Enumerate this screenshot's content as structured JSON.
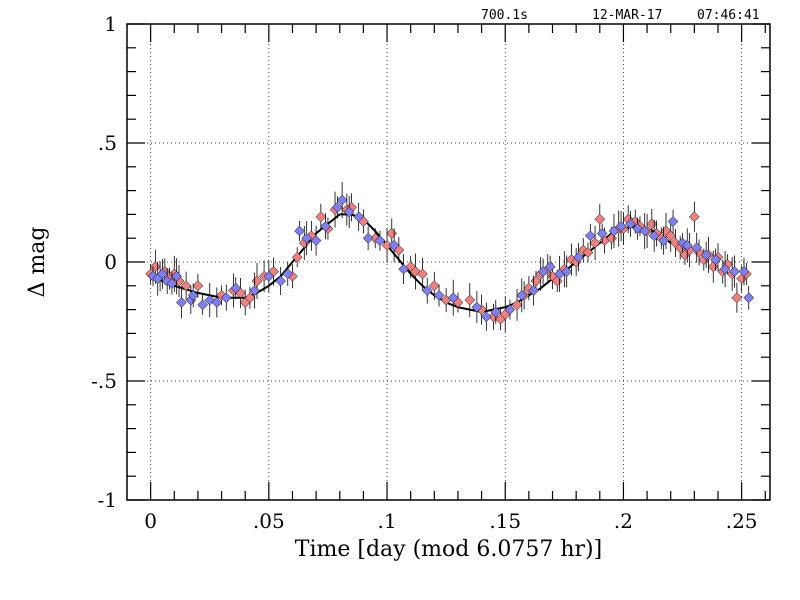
{
  "header": {
    "exposure": "700.1s",
    "date": "12-MAR-17",
    "time": "07:46:41"
  },
  "chart_data": {
    "type": "scatter",
    "title": "",
    "xlabel": "Time [day (mod 6.0757 hr)]",
    "ylabel": "Δ mag",
    "xlim": [
      -0.01,
      0.262
    ],
    "ylim": [
      -1,
      1
    ],
    "x_ticks": [
      0,
      0.05,
      0.1,
      0.15,
      0.2,
      0.25
    ],
    "x_tick_labels": [
      "0",
      ".05",
      ".1",
      ".15",
      ".2",
      ".25"
    ],
    "y_ticks": [
      1,
      0.5,
      0,
      -0.5,
      -1
    ],
    "y_tick_labels": [
      "1",
      ".5",
      "0",
      "-.5",
      "-1"
    ],
    "grid": "dotted",
    "colors": {
      "series_a": "#f08080",
      "series_b": "#7f7ff0",
      "curve": "#000000",
      "error_bar": "#000000"
    },
    "series": [
      {
        "color": "#f08080",
        "marker": "diamond",
        "points": [
          [
            0.0,
            -0.05
          ],
          [
            0.002,
            -0.02
          ],
          [
            0.004,
            -0.06
          ],
          [
            0.006,
            -0.04
          ],
          [
            0.008,
            -0.07
          ],
          [
            0.01,
            -0.05
          ],
          [
            0.012,
            -0.08
          ],
          [
            0.015,
            -0.1
          ],
          [
            0.02,
            -0.1
          ],
          [
            0.03,
            -0.14
          ],
          [
            0.035,
            -0.12
          ],
          [
            0.038,
            -0.13
          ],
          [
            0.04,
            -0.17
          ],
          [
            0.042,
            -0.15
          ],
          [
            0.045,
            -0.08
          ],
          [
            0.048,
            -0.06
          ],
          [
            0.052,
            -0.04
          ],
          [
            0.06,
            -0.06
          ],
          [
            0.062,
            0.02
          ],
          [
            0.065,
            0.08
          ],
          [
            0.068,
            0.11
          ],
          [
            0.072,
            0.19
          ],
          [
            0.075,
            0.14
          ],
          [
            0.078,
            0.22
          ],
          [
            0.083,
            0.22
          ],
          [
            0.085,
            0.23
          ],
          [
            0.09,
            0.17
          ],
          [
            0.095,
            0.1
          ],
          [
            0.1,
            0.07
          ],
          [
            0.102,
            0.12
          ],
          [
            0.105,
            0.05
          ],
          [
            0.11,
            -0.02
          ],
          [
            0.112,
            -0.04
          ],
          [
            0.115,
            -0.05
          ],
          [
            0.12,
            -0.1
          ],
          [
            0.125,
            -0.16
          ],
          [
            0.13,
            -0.17
          ],
          [
            0.135,
            -0.16
          ],
          [
            0.14,
            -0.2
          ],
          [
            0.145,
            -0.23
          ],
          [
            0.148,
            -0.24
          ],
          [
            0.15,
            -0.22
          ],
          [
            0.155,
            -0.18
          ],
          [
            0.158,
            -0.14
          ],
          [
            0.16,
            -0.11
          ],
          [
            0.163,
            -0.08
          ],
          [
            0.165,
            -0.05
          ],
          [
            0.168,
            -0.03
          ],
          [
            0.17,
            -0.06
          ],
          [
            0.172,
            -0.08
          ],
          [
            0.175,
            -0.03
          ],
          [
            0.178,
            0.01
          ],
          [
            0.18,
            0.0
          ],
          [
            0.183,
            0.05
          ],
          [
            0.185,
            0.04
          ],
          [
            0.188,
            0.08
          ],
          [
            0.19,
            0.18
          ],
          [
            0.192,
            0.09
          ],
          [
            0.195,
            0.1
          ],
          [
            0.198,
            0.14
          ],
          [
            0.2,
            0.14
          ],
          [
            0.202,
            0.18
          ],
          [
            0.205,
            0.17
          ],
          [
            0.207,
            0.15
          ],
          [
            0.21,
            0.13
          ],
          [
            0.212,
            0.16
          ],
          [
            0.214,
            0.12
          ],
          [
            0.216,
            0.1
          ],
          [
            0.218,
            0.13
          ],
          [
            0.22,
            0.11
          ],
          [
            0.222,
            0.08
          ],
          [
            0.224,
            0.06
          ],
          [
            0.226,
            0.03
          ],
          [
            0.228,
            0.05
          ],
          [
            0.23,
            0.19
          ],
          [
            0.232,
            0.04
          ],
          [
            0.234,
            0.01
          ],
          [
            0.236,
            0.03
          ],
          [
            0.238,
            -0.02
          ],
          [
            0.24,
            0.02
          ],
          [
            0.242,
            -0.04
          ],
          [
            0.244,
            -0.01
          ],
          [
            0.246,
            -0.05
          ],
          [
            0.248,
            -0.15
          ],
          [
            0.25,
            -0.07
          ],
          [
            0.252,
            -0.05
          ]
        ]
      },
      {
        "color": "#7f7ff0",
        "marker": "diamond",
        "points": [
          [
            0.001,
            -0.06
          ],
          [
            0.003,
            -0.07
          ],
          [
            0.005,
            -0.05
          ],
          [
            0.007,
            -0.08
          ],
          [
            0.009,
            -0.09
          ],
          [
            0.011,
            -0.06
          ],
          [
            0.013,
            -0.17
          ],
          [
            0.017,
            -0.16
          ],
          [
            0.018,
            -0.14
          ],
          [
            0.022,
            -0.18
          ],
          [
            0.025,
            -0.16
          ],
          [
            0.028,
            -0.17
          ],
          [
            0.032,
            -0.15
          ],
          [
            0.036,
            -0.11
          ],
          [
            0.044,
            -0.12
          ],
          [
            0.05,
            -0.06
          ],
          [
            0.055,
            -0.08
          ],
          [
            0.058,
            -0.05
          ],
          [
            0.063,
            0.13
          ],
          [
            0.066,
            0.1
          ],
          [
            0.07,
            0.09
          ],
          [
            0.074,
            0.15
          ],
          [
            0.079,
            0.23
          ],
          [
            0.081,
            0.26
          ],
          [
            0.084,
            0.21
          ],
          [
            0.088,
            0.19
          ],
          [
            0.092,
            0.1
          ],
          [
            0.097,
            0.09
          ],
          [
            0.103,
            0.07
          ],
          [
            0.107,
            -0.03
          ],
          [
            0.117,
            -0.12
          ],
          [
            0.122,
            -0.14
          ],
          [
            0.128,
            -0.15
          ],
          [
            0.138,
            -0.19
          ],
          [
            0.142,
            -0.23
          ],
          [
            0.146,
            -0.21
          ],
          [
            0.152,
            -0.2
          ],
          [
            0.157,
            -0.14
          ],
          [
            0.162,
            -0.12
          ],
          [
            0.166,
            -0.04
          ],
          [
            0.169,
            -0.02
          ],
          [
            0.173,
            -0.05
          ],
          [
            0.176,
            -0.04
          ],
          [
            0.181,
            0.02
          ],
          [
            0.186,
            0.11
          ],
          [
            0.191,
            0.12
          ],
          [
            0.196,
            0.13
          ],
          [
            0.199,
            0.15
          ],
          [
            0.203,
            0.16
          ],
          [
            0.206,
            0.14
          ],
          [
            0.209,
            0.13
          ],
          [
            0.213,
            0.11
          ],
          [
            0.217,
            0.09
          ],
          [
            0.221,
            0.17
          ],
          [
            0.225,
            0.08
          ],
          [
            0.227,
            0.07
          ],
          [
            0.231,
            0.06
          ],
          [
            0.235,
            0.03
          ],
          [
            0.239,
            0.01
          ],
          [
            0.243,
            -0.03
          ],
          [
            0.247,
            -0.04
          ],
          [
            0.251,
            -0.04
          ],
          [
            0.253,
            -0.15
          ]
        ]
      }
    ],
    "model_curve": {
      "color": "#000000",
      "points": [
        [
          0.0,
          -0.06
        ],
        [
          0.01,
          -0.1
        ],
        [
          0.02,
          -0.13
        ],
        [
          0.03,
          -0.15
        ],
        [
          0.04,
          -0.15
        ],
        [
          0.045,
          -0.13
        ],
        [
          0.05,
          -0.1
        ],
        [
          0.055,
          -0.06
        ],
        [
          0.06,
          0.0
        ],
        [
          0.065,
          0.06
        ],
        [
          0.07,
          0.12
        ],
        [
          0.075,
          0.16
        ],
        [
          0.08,
          0.2
        ],
        [
          0.085,
          0.2
        ],
        [
          0.09,
          0.18
        ],
        [
          0.095,
          0.13
        ],
        [
          0.1,
          0.07
        ],
        [
          0.105,
          0.01
        ],
        [
          0.11,
          -0.05
        ],
        [
          0.115,
          -0.1
        ],
        [
          0.12,
          -0.14
        ],
        [
          0.125,
          -0.17
        ],
        [
          0.13,
          -0.19
        ],
        [
          0.135,
          -0.2
        ],
        [
          0.14,
          -0.21
        ],
        [
          0.145,
          -0.2
        ],
        [
          0.15,
          -0.19
        ],
        [
          0.155,
          -0.17
        ],
        [
          0.16,
          -0.14
        ],
        [
          0.165,
          -0.11
        ],
        [
          0.17,
          -0.07
        ],
        [
          0.175,
          -0.04
        ],
        [
          0.18,
          0.0
        ],
        [
          0.185,
          0.04
        ],
        [
          0.19,
          0.08
        ],
        [
          0.195,
          0.12
        ],
        [
          0.2,
          0.14
        ],
        [
          0.205,
          0.15
        ],
        [
          0.21,
          0.14
        ],
        [
          0.215,
          0.12
        ],
        [
          0.22,
          0.08
        ]
      ]
    }
  }
}
